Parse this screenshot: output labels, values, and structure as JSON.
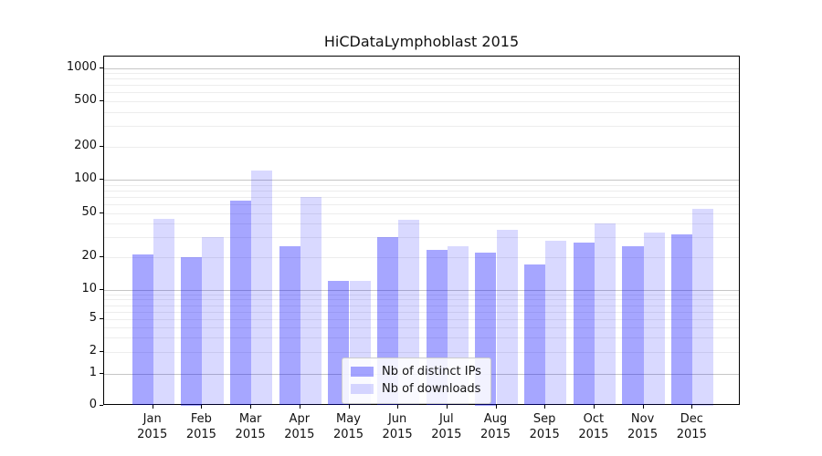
{
  "figure": {
    "title": "HiCDataLymphoblast 2015"
  },
  "legend": {
    "items": [
      {
        "label": "Nb of distinct IPs",
        "color": "rgba(0,0,255,0.35)"
      },
      {
        "label": "Nb of downloads",
        "color": "rgba(0,0,255,0.15)"
      }
    ]
  },
  "chart_data": {
    "type": "bar",
    "title": "HiCDataLymphoblast 2015",
    "categories": [
      "Jan 2015",
      "Feb 2015",
      "Mar 2015",
      "Apr 2015",
      "May 2015",
      "Jun 2015",
      "Jul 2015",
      "Aug 2015",
      "Sep 2015",
      "Oct 2015",
      "Nov 2015",
      "Dec 2015"
    ],
    "series": [
      {
        "name": "Nb of distinct IPs",
        "color": "rgba(0,0,255,0.35)",
        "values": [
          21,
          20,
          65,
          25,
          12,
          30,
          23,
          22,
          17,
          27,
          25,
          32
        ]
      },
      {
        "name": "Nb of downloads",
        "color": "rgba(0,0,255,0.15)",
        "values": [
          44,
          30,
          120,
          70,
          12,
          43,
          25,
          35,
          28,
          40,
          33,
          55
        ]
      }
    ],
    "xlabel": "",
    "ylabel": "",
    "yscale": "symlog (linear 0-1, logarithmic above)",
    "yticks": [
      0,
      1,
      2,
      5,
      10,
      20,
      50,
      100,
      200,
      500,
      1000
    ],
    "ytick_labels": [
      "0",
      "1",
      "2",
      "5",
      "10",
      "20",
      "50",
      "100",
      "200",
      "500",
      "1000"
    ],
    "ylim": [
      0,
      1400
    ],
    "grid": "horizontal major+minor log gridlines",
    "legend_position": "lower center inside plot"
  }
}
